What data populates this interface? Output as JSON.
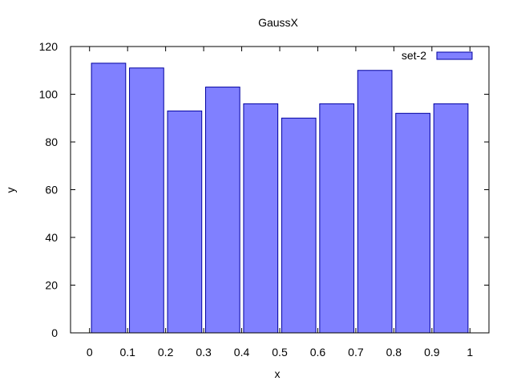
{
  "chart_data": {
    "type": "bar",
    "title": "GaussX",
    "xlabel": "x",
    "ylabel": "y",
    "xlim": [
      -0.05,
      1.05
    ],
    "ylim": [
      0,
      120
    ],
    "xticks": [
      "0",
      "0.1",
      "0.2",
      "0.3",
      "0.4",
      "0.5",
      "0.6",
      "0.7",
      "0.8",
      "0.9",
      "1"
    ],
    "yticks": [
      "0",
      "20",
      "40",
      "60",
      "80",
      "100",
      "120"
    ],
    "grid": false,
    "legend_position": "top-right",
    "bar_width": 0.09,
    "series": [
      {
        "name": "set-2",
        "color": "#8080ff",
        "edge_color": "#0000a0",
        "x": [
          0.05,
          0.15,
          0.25,
          0.35,
          0.45,
          0.55,
          0.65,
          0.75,
          0.85,
          0.95
        ],
        "values": [
          113,
          111,
          93,
          103,
          96,
          90,
          96,
          110,
          92,
          96
        ]
      }
    ]
  }
}
